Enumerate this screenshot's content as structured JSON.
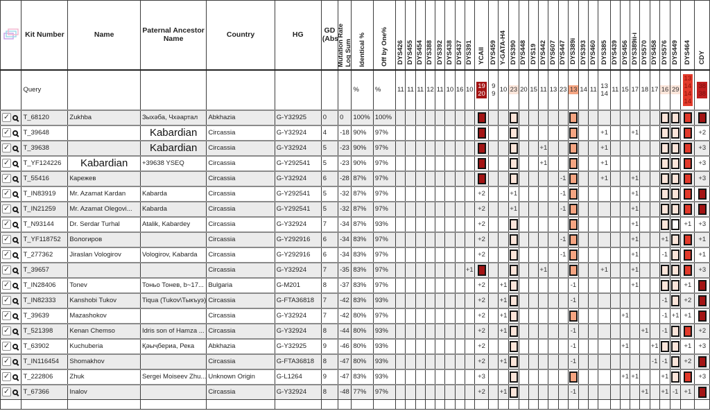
{
  "accent_colors": {
    "dark_red": "#a31414",
    "bright_red": "#e23a2b",
    "salmon_orange": "#f5a582",
    "pale_pink": "#fbe5da",
    "row_alt": "#ebebeb"
  },
  "header": {
    "kit": "Kit Number",
    "name": "Name",
    "paternal": "Paternal Ancestor Name",
    "country": "Country",
    "hg": "HG",
    "gd": "GD|(Abs)",
    "mutation": "Mutation Rate|Log Sum",
    "identical": "Identical %",
    "off": "Off by One%"
  },
  "marker_names": [
    "DYS426",
    "DYS455",
    "DYS454",
    "DYS388",
    "DYS392",
    "DYS438",
    "DYS437",
    "DYS391",
    "YCAII",
    "DYS459",
    "Y-GATA-H4",
    "DYS390",
    "DYS448",
    "DYS19",
    "DYS442",
    "DYS607",
    "DYS447",
    "DYS389i",
    "DYS393",
    "DYS460",
    "DYS385",
    "DYS439",
    "DYS456",
    "DYS389ii-i",
    "DYS570",
    "DYS458",
    "DYS576",
    "DYS449",
    "DYS464",
    "CDY"
  ],
  "query": {
    "label": "Query",
    "identical_label": "%",
    "off_label": "%",
    "markers": [
      {
        "v": "11"
      },
      {
        "v": "11"
      },
      {
        "v": "11"
      },
      {
        "v": "12"
      },
      {
        "v": "11"
      },
      {
        "v": "10"
      },
      {
        "v": "16"
      },
      {
        "v": "10"
      },
      {
        "v": "19|20",
        "bg": "darkred"
      },
      {
        "v": "9|9"
      },
      {
        "v": "10"
      },
      {
        "v": "23",
        "bg": "pale"
      },
      {
        "v": "20"
      },
      {
        "v": "15"
      },
      {
        "v": "11"
      },
      {
        "v": "13"
      },
      {
        "v": "23"
      },
      {
        "v": "13",
        "bg": "orange"
      },
      {
        "v": "14"
      },
      {
        "v": "11"
      },
      {
        "v": "13|14"
      },
      {
        "v": "11"
      },
      {
        "v": "15"
      },
      {
        "v": "17"
      },
      {
        "v": "18"
      },
      {
        "v": "17"
      },
      {
        "v": "16",
        "bg": "pale"
      },
      {
        "v": "29",
        "bg": "pale"
      },
      {
        "v": "13|14|14|14",
        "bg": "red"
      },
      {
        "v": "38|38",
        "bg": "redcdy"
      }
    ]
  },
  "rows": [
    {
      "kit": "T_68120",
      "name": "Zukhba",
      "pat": "Зыхәба, Чхәартал",
      "country": "Abkhazia",
      "hg": "G-Y32925",
      "gd": "0",
      "log": "0",
      "id": "100%",
      "off": "100%",
      "m": {
        "YCAII": "sq-darkred",
        "DYS390": "sq-pale",
        "DYS389i": "sq-orange",
        "DYS576": "sq-pale",
        "DYS449": "sq-pale",
        "DYS464": "sq-red",
        "CDY": "sq-darkred"
      }
    },
    {
      "kit": "T_39648",
      "name": "",
      "pat": "Kabardian",
      "pat_big": true,
      "country": "Circassia",
      "hg": "G-Y32924",
      "gd": "4",
      "log": "-18",
      "id": "90%",
      "off": "97%",
      "m": {
        "YCAII": "sq-darkred",
        "DYS390": "sq-pale",
        "DYS389i": "sq-orange",
        "DYS385": "+1",
        "DYS389ii-i": "+1",
        "DYS576": "sq-pale",
        "DYS449": "sq-pale",
        "DYS464": "sq-red",
        "CDY": "+2"
      }
    },
    {
      "kit": "T_39638",
      "name": "",
      "pat": "Kabardian",
      "pat_big": true,
      "country": "Circassia",
      "hg": "G-Y32924",
      "gd": "5",
      "log": "-23",
      "id": "90%",
      "off": "97%",
      "m": {
        "YCAII": "sq-darkred",
        "DYS390": "sq-pale",
        "DYS442": "+1",
        "DYS389i": "sq-orange",
        "DYS385": "+1",
        "DYS576": "sq-pale",
        "DYS449": "sq-pale",
        "DYS464": "sq-red",
        "CDY": "+3"
      }
    },
    {
      "kit": "T_YF124226",
      "name": "Kabardian",
      "name_big": true,
      "pat": "+39638 YSEQ",
      "country": "Circassia",
      "hg": "G-Y292541",
      "gd": "5",
      "log": "-23",
      "id": "90%",
      "off": "97%",
      "m": {
        "YCAII": "sq-darkred",
        "DYS390": "sq-pale",
        "DYS442": "+1",
        "DYS389i": "sq-orange",
        "DYS385": "+1",
        "DYS576": "sq-pale",
        "DYS449": "sq-pale",
        "DYS464": "sq-red",
        "CDY": "+3"
      }
    },
    {
      "kit": "T_55416",
      "name": "Карежев",
      "pat": "",
      "country": "Circassia",
      "hg": "G-Y32924",
      "gd": "6",
      "log": "-28",
      "id": "87%",
      "off": "97%",
      "m": {
        "YCAII": "sq-darkred",
        "DYS390": "sq-pale",
        "DYS447": "-1",
        "DYS389i": "sq-orange",
        "DYS385": "+1",
        "DYS389ii-i": "+1",
        "DYS576": "sq-pale",
        "DYS449": "sq-pale",
        "DYS464": "sq-red",
        "CDY": "+3"
      }
    },
    {
      "kit": "T_IN83919",
      "name": "Mr. Azamat Kardan",
      "pat": "Kabarda",
      "country": "Circassia",
      "hg": "G-Y292541",
      "gd": "5",
      "log": "-32",
      "id": "87%",
      "off": "97%",
      "m": {
        "YCAII": "+2",
        "DYS390": "+1",
        "DYS447": "-1",
        "DYS389i": "sq-orange",
        "DYS389ii-i": "+1",
        "DYS576": "sq-pale",
        "DYS449": "sq-pale",
        "DYS464": "sq-red",
        "CDY": "sq-darkred"
      }
    },
    {
      "kit": "T_IN21259",
      "name": "Mr. Azamat Olegovi...",
      "pat": "Kabarda",
      "country": "Circassia",
      "hg": "G-Y292541",
      "gd": "5",
      "log": "-32",
      "id": "87%",
      "off": "97%",
      "m": {
        "YCAII": "+2",
        "DYS390": "+1",
        "DYS447": "-1",
        "DYS389i": "sq-orange",
        "DYS389ii-i": "+1",
        "DYS576": "sq-pale",
        "DYS449": "sq-pale",
        "DYS464": "sq-red",
        "CDY": "sq-darkred"
      }
    },
    {
      "kit": "T_N93144",
      "name": "Dr. Serdar Turhal",
      "pat": "Atalik, Kabardey",
      "country": "Circassia",
      "hg": "G-Y32924",
      "gd": "7",
      "log": "-34",
      "id": "87%",
      "off": "93%",
      "m": {
        "YCAII": "+2",
        "DYS390": "sq-pale",
        "DYS389i": "sq-orange",
        "DYS389ii-i": "+1",
        "DYS576": "sq-pale",
        "DYS449": "sq-white",
        "DYS464": "+1",
        "CDY": "+3"
      }
    },
    {
      "kit": "T_YF118752",
      "name": "Вологиров",
      "pat": "",
      "country": "Circassia",
      "hg": "G-Y292916",
      "gd": "6",
      "log": "-34",
      "id": "83%",
      "off": "97%",
      "m": {
        "YCAII": "+2",
        "DYS390": "sq-pale",
        "DYS447": "-1",
        "DYS389i": "sq-orange",
        "DYS389ii-i": "+1",
        "DYS576": "+1",
        "DYS449": "sq-pale",
        "DYS464": "sq-red",
        "CDY": "+1"
      }
    },
    {
      "kit": "T_277362",
      "name": "Jiraslan Vologirov",
      "pat": "Vologirov, Kabarda",
      "country": "Circassia",
      "hg": "G-Y292916",
      "gd": "6",
      "log": "-34",
      "id": "83%",
      "off": "97%",
      "m": {
        "YCAII": "+2",
        "DYS390": "sq-pale",
        "DYS447": "-1",
        "DYS389i": "sq-orange",
        "DYS389ii-i": "+1",
        "DYS576": "-1",
        "DYS449": "sq-pale",
        "DYS464": "sq-red",
        "CDY": "+1"
      }
    },
    {
      "kit": "T_39657",
      "name": "",
      "pat": "",
      "country": "Circassia",
      "hg": "G-Y32924",
      "gd": "7",
      "log": "-35",
      "id": "83%",
      "off": "97%",
      "m": {
        "DYS391": "+1",
        "YCAII": "sq-darkred",
        "DYS390": "sq-pale",
        "DYS442": "+1",
        "DYS389i": "sq-orange",
        "DYS385": "+1",
        "DYS389ii-i": "+1",
        "DYS576": "sq-pale",
        "DYS449": "sq-pale",
        "DYS464": "sq-red",
        "CDY": "+3"
      }
    },
    {
      "kit": "T_IN28406",
      "name": "Tonev",
      "pat": "Тоньо Тонев, b~17...",
      "country": "Bulgaria",
      "hg": "G-M201",
      "gd": "8",
      "log": "-37",
      "id": "83%",
      "off": "97%",
      "m": {
        "YCAII": "+2",
        "Y-GATA-H4": "+1",
        "DYS390": "sq-pale",
        "DYS389i": "-1",
        "DYS389ii-i": "+1",
        "DYS576": "sq-pale",
        "DYS449": "sq-pale",
        "DYS464": "+1",
        "CDY": "sq-darkred"
      }
    },
    {
      "kit": "T_IN82333",
      "name": "Kanshobi Tukov",
      "pat": "Tiqua (Tukov\\Тыкъуэ)",
      "country": "Circassia",
      "hg": "G-FTA36818",
      "gd": "7",
      "log": "-42",
      "id": "83%",
      "off": "93%",
      "m": {
        "YCAII": "+2",
        "Y-GATA-H4": "+1",
        "DYS390": "sq-pale",
        "DYS389i": "-1",
        "DYS576": "-1",
        "DYS449": "sq-pale",
        "DYS464": "+2",
        "CDY": "sq-darkred"
      }
    },
    {
      "kit": "T_39639",
      "name": "Mazashokov",
      "pat": "",
      "country": "Circassia",
      "hg": "G-Y32924",
      "gd": "7",
      "log": "-42",
      "id": "80%",
      "off": "97%",
      "m": {
        "YCAII": "+2",
        "Y-GATA-H4": "+1",
        "DYS390": "sq-pale",
        "DYS389i": "sq-orange",
        "DYS456": "+1",
        "DYS576": "-1",
        "DYS449": "+1",
        "DYS464": "+1",
        "CDY": "sq-darkred"
      }
    },
    {
      "kit": "T_521398",
      "name": "Kenan Chemso",
      "pat": "Idris son of Hamza ...",
      "country": "Circassia",
      "hg": "G-Y32924",
      "gd": "8",
      "log": "-44",
      "id": "80%",
      "off": "93%",
      "m": {
        "YCAII": "+2",
        "Y-GATA-H4": "+1",
        "DYS390": "sq-pale",
        "DYS389i": "-1",
        "DYS570": "+1",
        "DYS576": "-1",
        "DYS449": "sq-pale",
        "DYS464": "sq-red",
        "CDY": "+2"
      }
    },
    {
      "kit": "T_63902",
      "name": "Kuchuberia",
      "pat": "Қәыҷбериа, Река",
      "country": "Abkhazia",
      "hg": "G-Y32925",
      "gd": "9",
      "log": "-46",
      "id": "80%",
      "off": "93%",
      "m": {
        "YCAII": "+2",
        "DYS390": "sq-pale",
        "DYS389i": "-1",
        "DYS456": "+1",
        "DYS458": "+1",
        "DYS576": "sq-pale",
        "DYS449": "sq-pale",
        "DYS464": "+1",
        "CDY": "+3"
      }
    },
    {
      "kit": "T_IN116454",
      "name": "Shomakhov",
      "pat": "",
      "country": "Circassia",
      "hg": "G-FTA36818",
      "gd": "8",
      "log": "-47",
      "id": "80%",
      "off": "93%",
      "m": {
        "YCAII": "+2",
        "Y-GATA-H4": "+1",
        "DYS390": "sq-pale",
        "DYS389i": "-1",
        "DYS458": "-1",
        "DYS576": "-1",
        "DYS449": "sq-pale",
        "DYS464": "+2",
        "CDY": "sq-darkred"
      }
    },
    {
      "kit": "T_222806",
      "name": "Zhuk",
      "pat": "Sergei Moiseev Zhu...",
      "country": "Unknown Origin",
      "hg": "G-L1264",
      "gd": "9",
      "log": "-47",
      "id": "83%",
      "off": "93%",
      "m": {
        "YCAII": "+3",
        "DYS390": "sq-pale",
        "DYS389i": "sq-orange",
        "DYS456": "+1",
        "DYS389ii-i": "+1",
        "DYS576": "+1",
        "DYS449": "sq-pale",
        "DYS464": "sq-red",
        "CDY": "+3"
      }
    },
    {
      "kit": "T_67366",
      "name": "Inalov",
      "pat": "",
      "country": "Circassia",
      "hg": "G-Y32924",
      "gd": "8",
      "log": "-48",
      "id": "77%",
      "off": "97%",
      "m": {
        "YCAII": "+2",
        "Y-GATA-H4": "+1",
        "DYS390": "sq-pale",
        "DYS389i": "-1",
        "DYS570": "+1",
        "DYS576": "+1",
        "DYS449": "-1",
        "DYS464": "+1",
        "CDY": "sq-darkred"
      }
    }
  ],
  "row_controls": {
    "checkbox_checked": "✓"
  },
  "bottom_partial_row": true
}
